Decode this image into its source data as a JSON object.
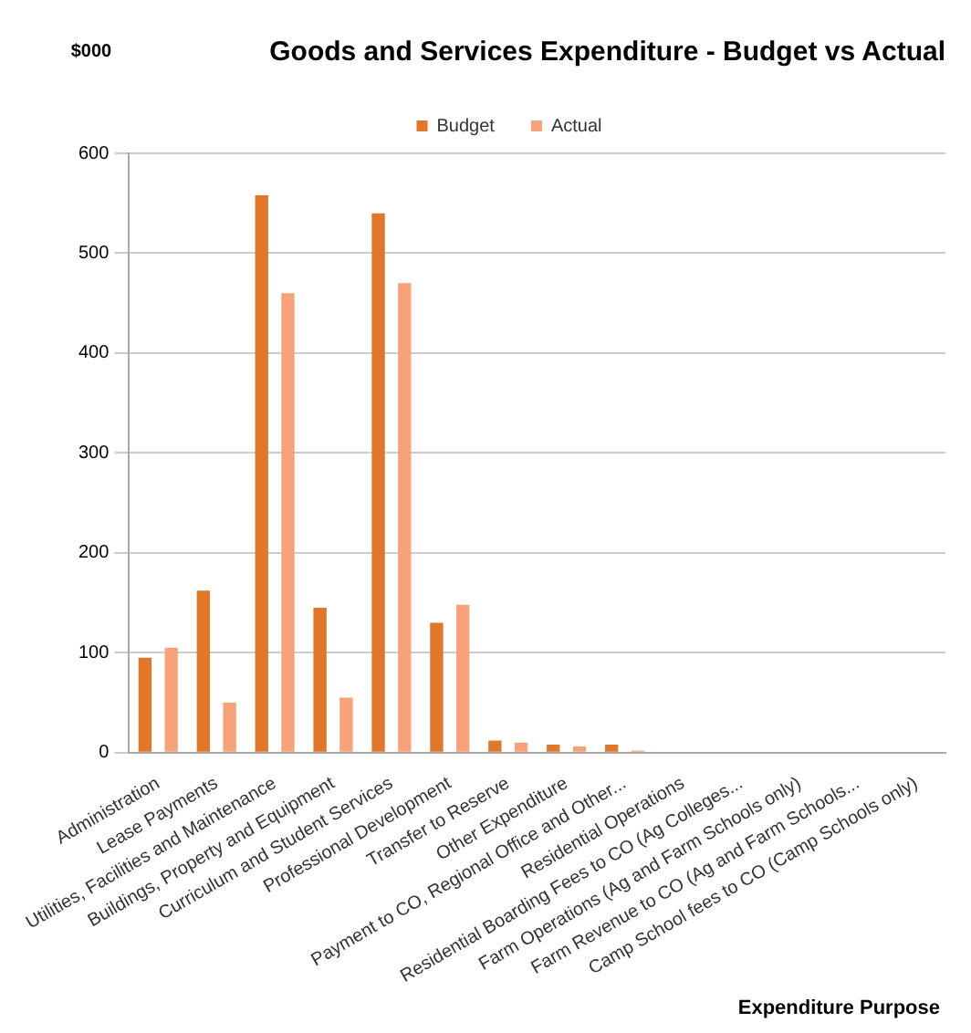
{
  "chart_data": {
    "type": "bar",
    "title": "Goods and Services Expenditure - Budget vs Actual",
    "ylabel": "$000",
    "xlabel": "Expenditure Purpose",
    "categories": [
      "Administration",
      "Lease Payments",
      "Utilities, Facilities and Maintenance",
      "Buildings, Property and Equipment",
      "Curriculum and Student Services",
      "Professional Development",
      "Transfer to Reserve",
      "Other Expenditure",
      "Payment to CO, Regional Office and Other...",
      "Residential Operations",
      "Residential Boarding Fees to CO (Ag Colleges...",
      "Farm Operations (Ag and Farm Schools only)",
      "Farm Revenue to CO (Ag and Farm Schools...",
      "Camp School fees to CO (Camp Schools only)"
    ],
    "series": [
      {
        "name": "Budget",
        "color": "#e0772a",
        "values": [
          95,
          162,
          558,
          145,
          540,
          130,
          12,
          8,
          8,
          0,
          0,
          0,
          0,
          0
        ]
      },
      {
        "name": "Actual",
        "color": "#f7a27a",
        "values": [
          105,
          50,
          460,
          55,
          470,
          148,
          10,
          6,
          2,
          0,
          0,
          0,
          0,
          0
        ]
      }
    ],
    "ylim": [
      0,
      600
    ],
    "yticks": [
      0,
      100,
      200,
      300,
      400,
      500,
      600
    ],
    "grid": "y",
    "legend": "top"
  }
}
